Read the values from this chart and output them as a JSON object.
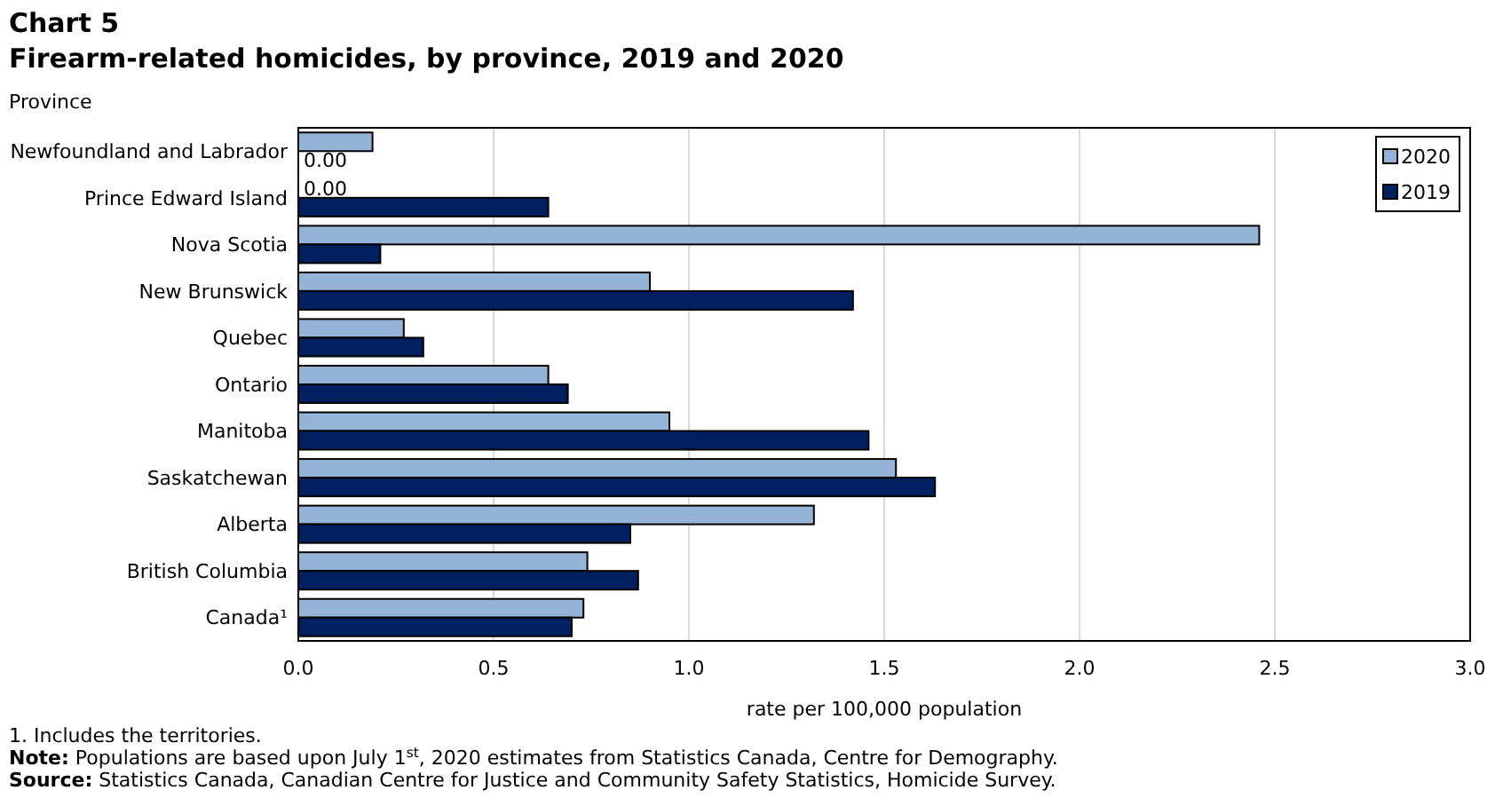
{
  "chart_data": {
    "type": "bar",
    "orientation": "horizontal",
    "title": "Chart 5",
    "subtitle": "Firearm-related homicides, by province, 2019 and 2020",
    "ylabel": "Province",
    "xlabel": "rate per 100,000 population",
    "categories": [
      "Newfoundland and Labrador",
      "Prince Edward Island",
      "Nova Scotia",
      "New Brunswick",
      "Quebec",
      "Ontario",
      "Manitoba",
      "Saskatchewan",
      "Alberta",
      "British Columbia",
      "Canada¹"
    ],
    "series": [
      {
        "name": "2020",
        "color": "#95b3d7",
        "values": [
          0.19,
          0,
          2.46,
          0.9,
          0.27,
          0.64,
          0.95,
          1.53,
          1.32,
          0.74,
          0.73
        ],
        "value_labels": [
          null,
          "0.00",
          null,
          null,
          null,
          null,
          null,
          null,
          null,
          null,
          null
        ]
      },
      {
        "name": "2019",
        "color": "#002060",
        "values": [
          0,
          0.64,
          0.21,
          1.42,
          0.32,
          0.69,
          1.46,
          1.63,
          0.85,
          0.87,
          0.7
        ],
        "value_labels": [
          "0.00",
          null,
          null,
          null,
          null,
          null,
          null,
          null,
          null,
          null,
          null
        ]
      }
    ],
    "xlim": [
      0,
      3
    ],
    "xticks": [
      {
        "value": 0,
        "label": "0.0"
      },
      {
        "value": 0.5,
        "label": "0.5"
      },
      {
        "value": 1,
        "label": "1.0"
      },
      {
        "value": 1.5,
        "label": "1.5"
      },
      {
        "value": 2,
        "label": "2.0"
      },
      {
        "value": 2.5,
        "label": "2.5"
      },
      {
        "value": 3,
        "label": "3.0"
      }
    ],
    "grid": "x",
    "legend": "top right",
    "annotations": [
      "1. Includes the territories.",
      "Note: Populations are based upon July 1$^{st}$, 2020 estimates from Statistics Canada, Centre for Demography.",
      "Source: Statistics Canada, Canadian Centre for Justice and Community Safety Statistics, Homicide Survey."
    ]
  }
}
